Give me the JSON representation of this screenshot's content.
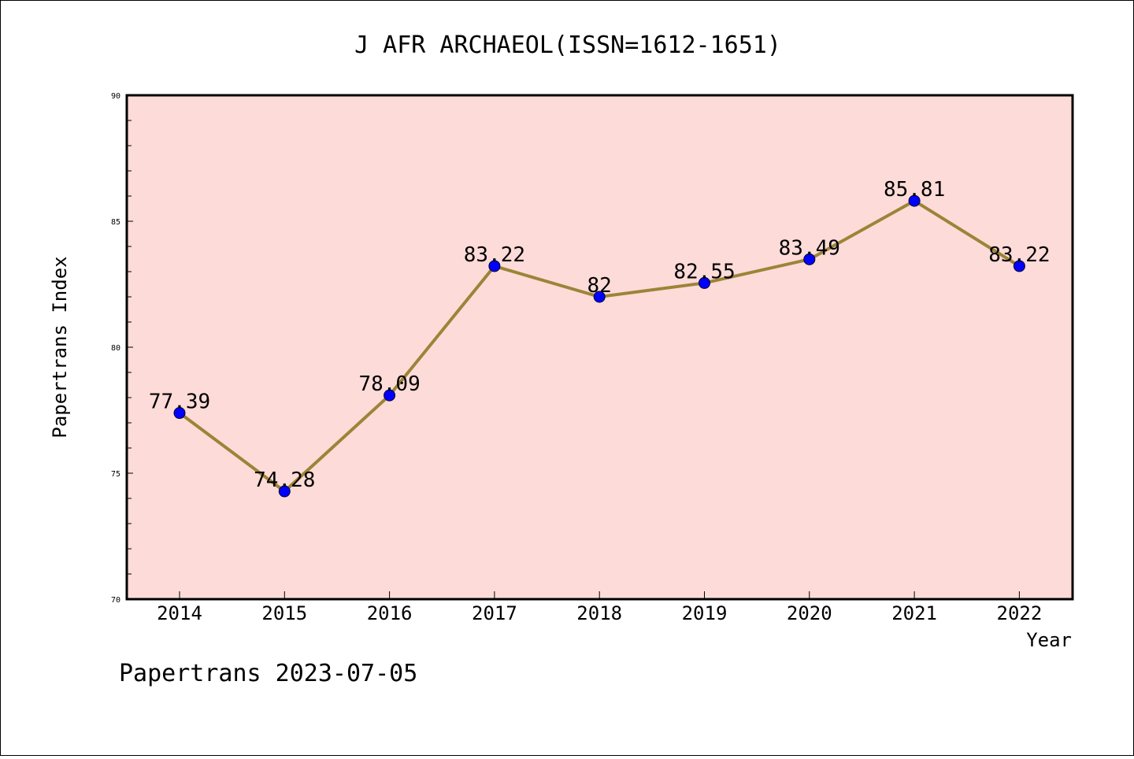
{
  "chart_data": {
    "type": "line",
    "title": "J AFR ARCHAEOL(ISSN=1612-1651)",
    "xlabel": "Year",
    "ylabel": "Papertrans Index",
    "categories": [
      "2014",
      "2015",
      "2016",
      "2017",
      "2018",
      "2019",
      "2020",
      "2021",
      "2022"
    ],
    "series": [
      {
        "values": [
          77.39,
          74.28,
          78.09,
          83.22,
          82,
          82.55,
          83.49,
          85.81,
          83.22
        ],
        "labels": [
          "77.39",
          "74.28",
          "78.09",
          "83.22",
          "82",
          "82.55",
          "83.49",
          "85.81",
          "83.22"
        ]
      }
    ],
    "ylim": [
      70,
      90
    ],
    "yticks": [
      "70",
      "75",
      "80",
      "85",
      "90"
    ],
    "grid": false,
    "legend": "none",
    "colors": {
      "plot_background": "#fddbd8",
      "line": "#9c8438",
      "marker": "#0000ff"
    }
  },
  "footer": {
    "text": "Papertrans 2023-07-05"
  }
}
